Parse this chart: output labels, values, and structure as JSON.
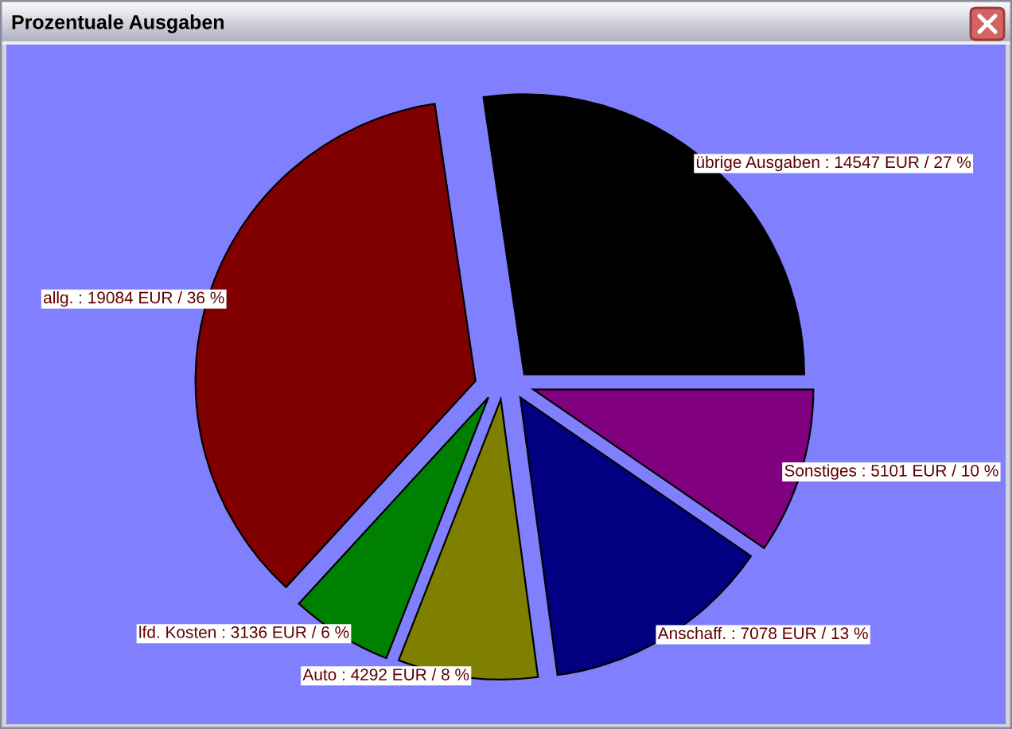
{
  "chart_data": {
    "type": "pie",
    "title": "Prozentuale Ausgaben",
    "categories": [
      "übrige Ausgaben : 14547 EUR / 27 %",
      "allg. : 19084 EUR / 36 %",
      "lfd. Kosten : 3136 EUR / 6 %",
      "Auto : 4292 EUR / 8 %",
      "Anschaff. : 7078 EUR / 13 %",
      "Sonstiges : 5101 EUR / 10 %"
    ],
    "values": [
      14547,
      19084,
      3136,
      4292,
      7078,
      5101
    ],
    "colors": [
      "#000000",
      "#800000",
      "#008000",
      "#808000",
      "#000080",
      "#800080"
    ]
  }
}
